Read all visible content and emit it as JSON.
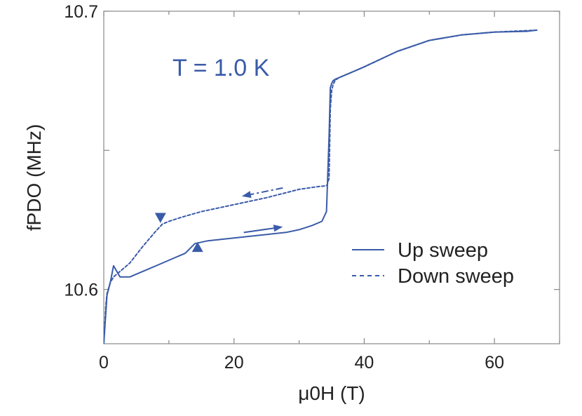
{
  "chart_data": {
    "type": "line",
    "xlabel": "μ0H (T)",
    "ylabel": "fPDO (MHz)",
    "xlim": [
      0,
      70
    ],
    "ylim": [
      10.5805,
      10.7
    ],
    "xticks": [
      0,
      20,
      40,
      60
    ],
    "xtick_labels": [
      "0",
      "20",
      "40",
      "60"
    ],
    "yticks": [
      10.6,
      10.7
    ],
    "ytick_labels": [
      "10.6",
      "10.7"
    ],
    "y_minor_ticks": [
      10.65
    ],
    "annotation": "T = 1.0 K",
    "colors": {
      "series": "#3a5ba8",
      "axis": "#888888",
      "text": "#222222"
    },
    "legend": {
      "position": "center-right",
      "entries": [
        "Up sweep",
        "Down sweep"
      ]
    },
    "series": [
      {
        "name": "Up sweep",
        "style": "solid",
        "x": [
          0,
          0.5,
          1.0,
          1.5,
          2.0,
          2.5,
          3.0,
          3.5,
          4.0,
          5,
          7,
          9,
          11,
          12.5,
          14,
          16,
          18,
          20,
          22,
          24,
          26,
          28,
          30,
          32,
          33.5,
          34.2,
          34.6,
          34.8,
          35.0,
          35.2,
          35.5,
          36,
          38,
          40,
          45,
          50,
          55,
          60,
          65,
          66.5
        ],
        "y": [
          10.5805,
          10.598,
          10.6025,
          10.6085,
          10.6065,
          10.6045,
          10.6045,
          10.6045,
          10.6045,
          10.6055,
          10.6075,
          10.6095,
          10.6115,
          10.613,
          10.6165,
          10.6175,
          10.618,
          10.6185,
          10.619,
          10.6195,
          10.62,
          10.6205,
          10.6215,
          10.623,
          10.6245,
          10.628,
          10.655,
          10.6725,
          10.674,
          10.675,
          10.6755,
          10.676,
          10.678,
          10.68,
          10.6855,
          10.6895,
          10.6915,
          10.6925,
          10.6928,
          10.6932
        ]
      },
      {
        "name": "Down sweep",
        "style": "dashed",
        "x": [
          66.5,
          60,
          55,
          50,
          45,
          40,
          38,
          36,
          35.5,
          35.2,
          35.0,
          34.8,
          34.6,
          34.3,
          34,
          33,
          30,
          25,
          20,
          15,
          12,
          10,
          9,
          8,
          6,
          4,
          3,
          2,
          1.5,
          1.0,
          0.5,
          0.3,
          0
        ],
        "y": [
          10.6932,
          10.6925,
          10.6915,
          10.6895,
          10.6855,
          10.68,
          10.678,
          10.676,
          10.675,
          10.6735,
          10.6715,
          10.665,
          10.64,
          10.6375,
          10.6372,
          10.637,
          10.636,
          10.633,
          10.6305,
          10.628,
          10.626,
          10.6245,
          10.6235,
          10.621,
          10.6155,
          10.6095,
          10.6075,
          10.6055,
          10.6045,
          10.6025,
          10.5985,
          10.594,
          10.5805
        ]
      }
    ],
    "markers": [
      {
        "name": "down-triangle",
        "x": 8.7,
        "y": 10.6255,
        "direction": "down"
      },
      {
        "name": "up-triangle",
        "x": 14.4,
        "y": 10.6155,
        "direction": "up"
      }
    ],
    "arrows": [
      {
        "name": "down-sweep-arrow",
        "from": [
          27.5,
          10.6365
        ],
        "to": [
          21.2,
          10.6335
        ],
        "style": "dashdot"
      },
      {
        "name": "up-sweep-arrow",
        "from": [
          21.5,
          10.6205
        ],
        "to": [
          27.5,
          10.6225
        ],
        "style": "solid"
      }
    ]
  }
}
